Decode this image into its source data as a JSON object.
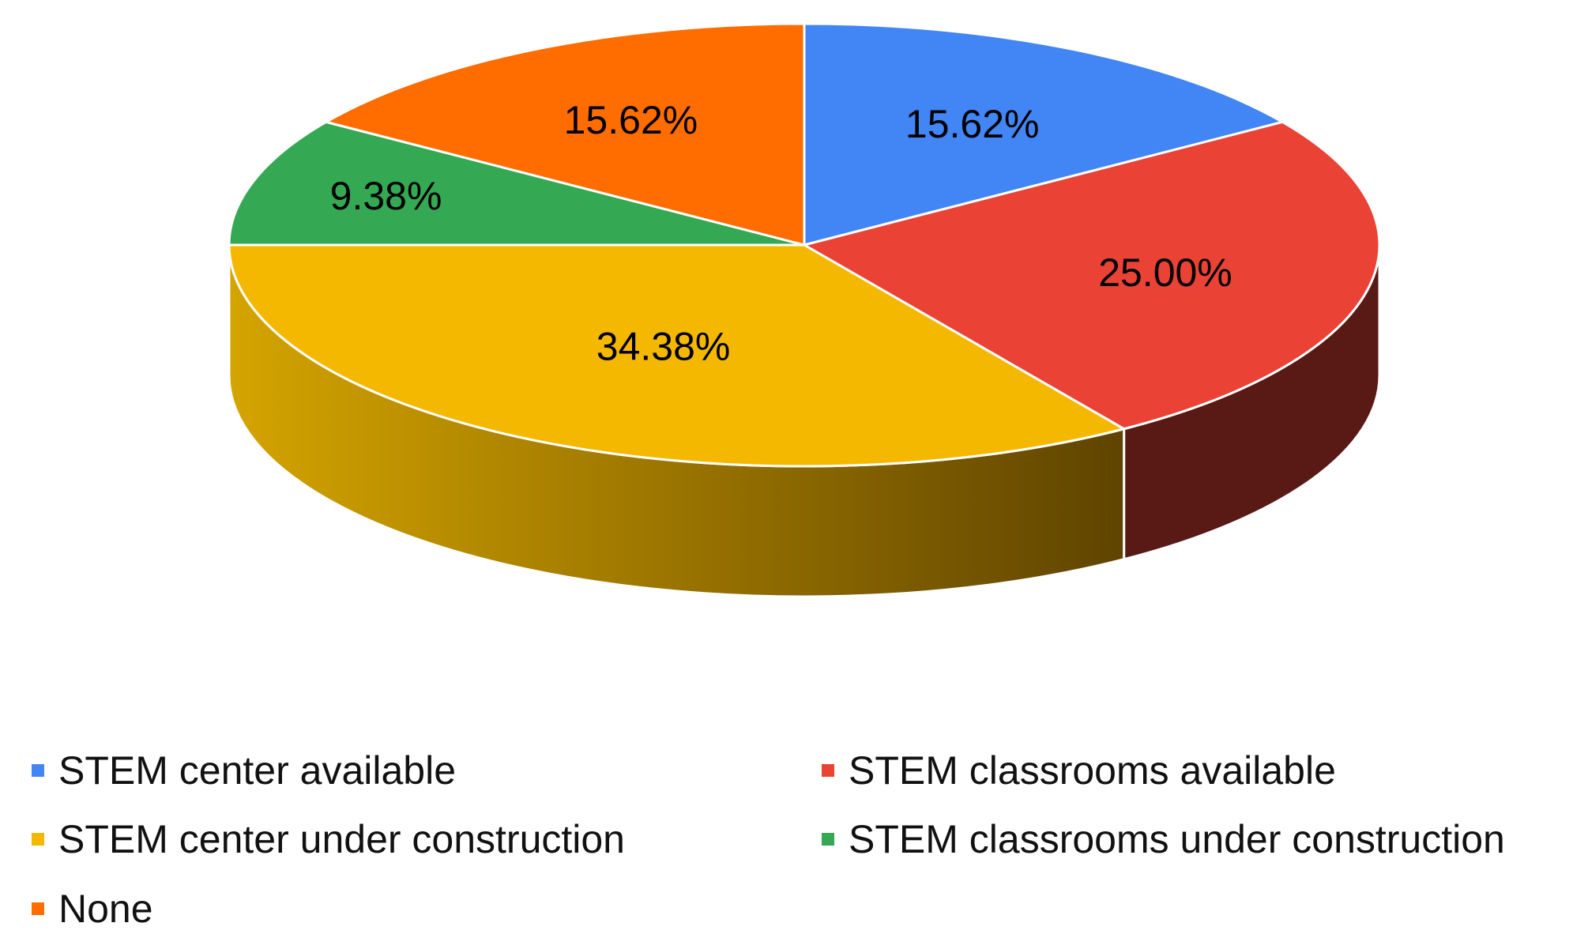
{
  "chart_data": {
    "type": "pie",
    "variant": "3d",
    "title": "",
    "categories": [
      "STEM center available",
      "STEM classrooms available",
      "STEM center under construction",
      "STEM classrooms under construction",
      "None"
    ],
    "values": [
      15.62,
      25.0,
      34.38,
      9.38,
      15.62
    ],
    "data_labels": [
      "15.62%",
      "25.00%",
      "34.38%",
      "9.38%",
      "15.62%"
    ],
    "unit": "%",
    "colors": [
      "#4285F4",
      "#EA4335",
      "#F5B800",
      "#34A853",
      "#FF6D00"
    ],
    "legend": {
      "placement": "bottom",
      "columns": 2,
      "marker": "square"
    }
  }
}
